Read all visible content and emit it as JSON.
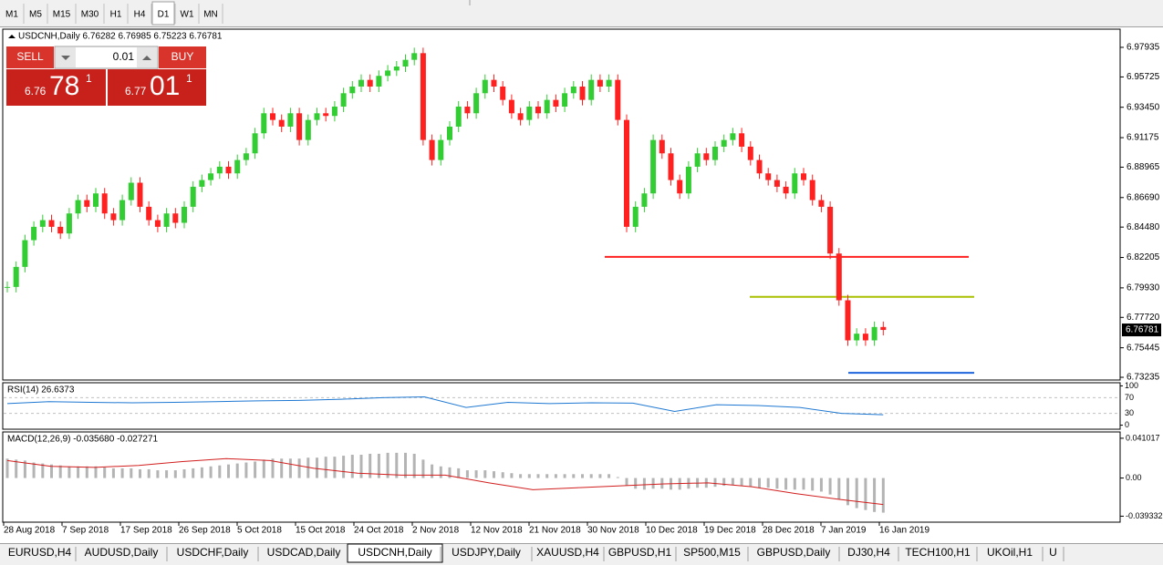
{
  "timeframes": [
    "M1",
    "M5",
    "M15",
    "M30",
    "H1",
    "H4",
    "D1",
    "W1",
    "MN"
  ],
  "active_timeframe": 6,
  "tabs": [
    "EURUSD,H4",
    "AUDUSD,Daily",
    "USDCHF,Daily",
    "USDCAD,Daily",
    "USDCNH,Daily",
    "USDJPY,Daily",
    "XAUUSD,H4",
    "GBPUSD,H1",
    "SP500,M15",
    "GBPUSD,Daily",
    "DJ30,H4",
    "TECH100,H1",
    "UKOil,H1",
    "U"
  ],
  "active_tab": 4,
  "trade": {
    "sell_label": "SELL",
    "buy_label": "BUY",
    "lot": "0.01",
    "bid": [
      "6.76",
      "78",
      "1"
    ],
    "ask": [
      "6.77",
      "01",
      "1"
    ]
  },
  "chart_data": {
    "type": "candlestick",
    "header": "USDCNH,Daily  6.76282 6.76985 6.75223 6.76781",
    "up_color": "#32cd32",
    "down_color": "#ff2020",
    "close": [
      6.8,
      6.815,
      6.835,
      6.845,
      6.85,
      6.845,
      6.84,
      6.855,
      6.865,
      6.86,
      6.87,
      6.855,
      6.85,
      6.865,
      6.878,
      6.86,
      6.85,
      6.845,
      6.855,
      6.848,
      6.86,
      6.875,
      6.88,
      6.885,
      6.89,
      6.885,
      6.895,
      6.9,
      6.915,
      6.93,
      6.925,
      6.92,
      6.93,
      6.91,
      6.925,
      6.93,
      6.928,
      6.935,
      6.945,
      6.95,
      6.955,
      6.95,
      6.958,
      6.962,
      6.965,
      6.97,
      6.975,
      6.91,
      6.895,
      6.91,
      6.92,
      6.935,
      6.93,
      6.945,
      6.955,
      6.95,
      6.94,
      6.93,
      6.925,
      6.935,
      6.93,
      6.94,
      6.935,
      6.945,
      6.95,
      6.94,
      6.955,
      6.95,
      6.955,
      6.925,
      6.845,
      6.86,
      6.87,
      6.91,
      6.9,
      6.88,
      6.87,
      6.89,
      6.9,
      6.895,
      6.905,
      6.91,
      6.915,
      6.905,
      6.895,
      6.885,
      6.88,
      6.875,
      6.87,
      6.885,
      6.88,
      6.865,
      6.86,
      6.825,
      6.79,
      6.76,
      6.765,
      6.76,
      6.77,
      6.7678
    ],
    "ylim": [
      6.731,
      6.9916
    ],
    "yticks": [
      6.97935,
      {
        "value": 6.9572,
        "label": "6.95725"
      },
      {
        "value": 6.9345,
        "label": "6.93450"
      },
      6.91175,
      6.88965,
      {
        "value": 6.8669,
        "label": "6.86690"
      },
      {
        "value": 6.8448,
        "label": "6.84480"
      },
      6.82205,
      {
        "value": 6.7993,
        "label": "6.79930"
      },
      {
        "value": 6.7772,
        "label": "6.77720"
      },
      6.75445,
      6.73235
    ],
    "last_price": 6.76781,
    "levels": [
      {
        "value": 6.8225,
        "color": "#ff2020"
      },
      {
        "value": 6.7926,
        "color": "#a8c000"
      },
      {
        "value": 6.7357,
        "color": "#1e64dc"
      }
    ],
    "dates": [
      "28 Aug 2018",
      "7 Sep 2018",
      "17 Sep 2018",
      "26 Sep 2018",
      "5 Oct 2018",
      "15 Oct 2018",
      "24 Oct 2018",
      "2 Nov 2018",
      "12 Nov 2018",
      "21 Nov 2018",
      "30 Nov 2018",
      "10 Dec 2018",
      "19 Dec 2018",
      "28 Dec 2018",
      "7 Jan 2019",
      "16 Jan 2019"
    ],
    "rsi": {
      "label": "RSI(14) 26.6373",
      "color": "#1e78d2",
      "values": [
        55,
        60,
        58,
        57,
        58,
        60,
        62,
        63,
        66,
        70,
        72,
        45,
        58,
        55,
        57,
        56,
        35,
        52,
        50,
        45,
        30,
        26.6373
      ],
      "ylim": [
        -8,
        108
      ],
      "yticks": [
        100,
        70,
        30,
        0
      ]
    },
    "macd": {
      "label": "MACD(12,26,9) -0.035680 -0.027271",
      "hist_color": "#b4b4b4",
      "signal_color": "#d21e1e",
      "hist": [
        0.02,
        0.019,
        0.018,
        0.016,
        0.015,
        0.014,
        0.013,
        0.012,
        0.012,
        0.012,
        0.012,
        0.011,
        0.01,
        0.01,
        0.01,
        0.009,
        0.009,
        0.008,
        0.008,
        0.008,
        0.009,
        0.01,
        0.011,
        0.012,
        0.013,
        0.014,
        0.015,
        0.016,
        0.017,
        0.019,
        0.02,
        0.02,
        0.02,
        0.02,
        0.021,
        0.021,
        0.022,
        0.022,
        0.023,
        0.024,
        0.024,
        0.025,
        0.025,
        0.026,
        0.026,
        0.026,
        0.025,
        0.019,
        0.014,
        0.012,
        0.011,
        0.01,
        0.008,
        0.008,
        0.008,
        0.007,
        0.006,
        0.005,
        0.004,
        0.004,
        0.004,
        0.004,
        0.004,
        0.004,
        0.004,
        0.004,
        0.004,
        0.004,
        0.004,
        0.001,
        -0.008,
        -0.011,
        -0.012,
        -0.011,
        -0.011,
        -0.012,
        -0.012,
        -0.011,
        -0.01,
        -0.01,
        -0.009,
        -0.008,
        -0.007,
        -0.008,
        -0.009,
        -0.01,
        -0.01,
        -0.011,
        -0.012,
        -0.012,
        -0.012,
        -0.013,
        -0.014,
        -0.017,
        -0.022,
        -0.028,
        -0.031,
        -0.033,
        -0.035,
        -0.03568
      ],
      "signal": [
        0.018,
        0.012,
        0.011,
        0.013,
        0.017,
        0.02,
        0.018,
        0.01,
        0.005,
        0.003,
        0.003,
        -0.005,
        -0.012,
        -0.01,
        -0.008,
        -0.006,
        -0.005,
        -0.009,
        -0.016,
        -0.022,
        -0.027271
      ],
      "ylim": [
        -0.0455,
        0.0475
      ],
      "yticks": [
        0.041017,
        {
          "value": 0,
          "label": "0.00"
        },
        -0.039332
      ]
    }
  }
}
